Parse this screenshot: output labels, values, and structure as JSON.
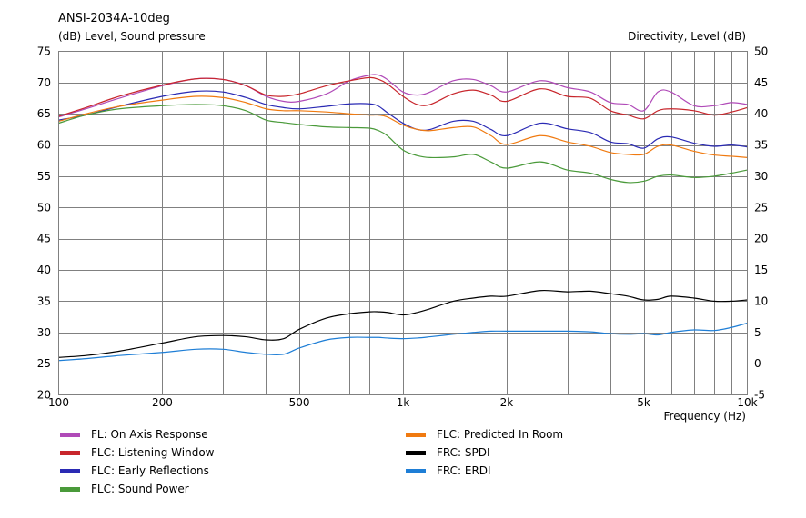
{
  "chart_data": {
    "type": "line",
    "title": "ANSI-2034A-10deg",
    "ylabel_left": "(dB)  Level, Sound pressure",
    "ylabel_right": "Directivity, Level  (dB)",
    "xlabel": "Frequency  (Hz)",
    "x_scale": "log",
    "xlim": [
      100,
      10000
    ],
    "ylim_left": [
      20,
      75
    ],
    "ylim_right": [
      -5,
      50
    ],
    "yticks_left": [
      "75",
      "70",
      "65",
      "60",
      "55",
      "50",
      "45",
      "40",
      "35",
      "30",
      "25",
      "20"
    ],
    "yticks_right": [
      "50",
      "45",
      "40",
      "35",
      "30",
      "25",
      "20",
      "15",
      "10",
      "5",
      "0",
      "-5"
    ],
    "xtick_labels": [
      {
        "x": 100,
        "label": "100"
      },
      {
        "x": 200,
        "label": "200"
      },
      {
        "x": 500,
        "label": "500"
      },
      {
        "x": 1000,
        "label": "1k"
      },
      {
        "x": 2000,
        "label": "2k"
      },
      {
        "x": 5000,
        "label": "5k"
      },
      {
        "x": 10000,
        "label": "10k"
      }
    ],
    "grid": true,
    "series": [
      {
        "name": "FL: On Axis Response",
        "axis": "left",
        "color": "#b04ab8",
        "x": [
          100,
          120,
          150,
          200,
          250,
          300,
          350,
          400,
          450,
          500,
          600,
          700,
          800,
          850,
          900,
          1000,
          1100,
          1200,
          1400,
          1600,
          1800,
          2000,
          2500,
          3000,
          3500,
          4000,
          4500,
          5000,
          5500,
          6000,
          7000,
          8000,
          9000,
          10000
        ],
        "y": [
          64.5,
          65.8,
          67.5,
          69.5,
          70.6,
          70.5,
          69.5,
          67.8,
          67,
          67,
          68.2,
          70.3,
          71.2,
          71.2,
          70.5,
          68.5,
          68,
          68.5,
          70.3,
          70.5,
          69.5,
          68.5,
          70.3,
          69.2,
          68.5,
          66.8,
          66.5,
          65.5,
          68.5,
          68.5,
          66.3,
          66.3,
          66.8,
          66.5
        ]
      },
      {
        "name": "FLC: Listening Window",
        "axis": "left",
        "color": "#c8262c",
        "x": [
          100,
          120,
          150,
          200,
          250,
          300,
          350,
          400,
          450,
          500,
          600,
          700,
          800,
          850,
          900,
          1000,
          1100,
          1200,
          1400,
          1600,
          1800,
          2000,
          2500,
          3000,
          3500,
          4000,
          4500,
          5000,
          5500,
          6000,
          7000,
          8000,
          9000,
          10000
        ],
        "y": [
          64.6,
          66,
          67.8,
          69.6,
          70.6,
          70.5,
          69.5,
          68,
          67.8,
          68.2,
          69.5,
          70.3,
          70.8,
          70.5,
          69.8,
          67.8,
          66.5,
          66.5,
          68.2,
          68.8,
          68,
          67,
          69,
          67.8,
          67.5,
          65.5,
          64.8,
          64.2,
          65.5,
          65.8,
          65.5,
          64.8,
          65.3,
          66
        ]
      },
      {
        "name": "FLC: Early Reflections",
        "axis": "left",
        "color": "#2a2ab4",
        "x": [
          100,
          120,
          150,
          200,
          250,
          300,
          350,
          400,
          450,
          500,
          600,
          700,
          800,
          850,
          900,
          1000,
          1100,
          1200,
          1400,
          1600,
          1800,
          2000,
          2500,
          3000,
          3500,
          4000,
          4500,
          5000,
          5500,
          6000,
          7000,
          8000,
          9000,
          10000
        ],
        "y": [
          64,
          64.8,
          66.2,
          67.8,
          68.6,
          68.5,
          67.6,
          66.5,
          66,
          65.8,
          66.2,
          66.6,
          66.6,
          66.2,
          65.2,
          63.5,
          62.5,
          62.5,
          63.8,
          63.8,
          62.5,
          61.5,
          63.5,
          62.6,
          62,
          60.5,
          60.2,
          59.5,
          61,
          61.3,
          60.3,
          59.8,
          60,
          59.7
        ]
      },
      {
        "name": "FLC: Sound Power",
        "axis": "left",
        "color": "#4a9a3a",
        "x": [
          100,
          120,
          150,
          200,
          250,
          300,
          350,
          400,
          450,
          500,
          600,
          700,
          800,
          850,
          900,
          1000,
          1100,
          1200,
          1400,
          1600,
          1800,
          2000,
          2500,
          3000,
          3500,
          4000,
          4500,
          5000,
          5500,
          6000,
          7000,
          8000,
          9000,
          10000
        ],
        "y": [
          63.5,
          64.8,
          65.8,
          66.3,
          66.5,
          66.3,
          65.5,
          64,
          63.6,
          63.3,
          62.9,
          62.8,
          62.7,
          62.3,
          61.5,
          59.2,
          58.3,
          58,
          58.1,
          58.5,
          57.3,
          56.3,
          57.3,
          56,
          55.5,
          54.5,
          54,
          54.2,
          55,
          55.2,
          54.8,
          55,
          55.5,
          56
        ]
      },
      {
        "name": "FLC: Predicted In Room",
        "axis": "left",
        "color": "#f07a10",
        "x": [
          100,
          120,
          150,
          200,
          250,
          300,
          350,
          400,
          450,
          500,
          600,
          700,
          800,
          850,
          900,
          1000,
          1100,
          1200,
          1400,
          1600,
          1800,
          2000,
          2500,
          3000,
          3500,
          4000,
          4500,
          5000,
          5500,
          6000,
          7000,
          8000,
          9000,
          10000
        ],
        "y": [
          63.8,
          65,
          66.2,
          67.2,
          67.8,
          67.6,
          66.8,
          65.8,
          65.5,
          65.5,
          65.3,
          65,
          64.8,
          64.8,
          64.5,
          63.2,
          62.5,
          62.3,
          62.8,
          62.9,
          61.5,
          60.1,
          61.5,
          60.5,
          59.8,
          58.8,
          58.5,
          58.5,
          59.8,
          60,
          59,
          58.4,
          58.2,
          58
        ]
      },
      {
        "name": "FRC: SPDI",
        "axis": "right",
        "color": "#000000",
        "x": [
          100,
          120,
          150,
          200,
          250,
          300,
          350,
          400,
          450,
          500,
          600,
          700,
          800,
          850,
          900,
          1000,
          1100,
          1200,
          1400,
          1600,
          1800,
          2000,
          2500,
          3000,
          3500,
          4000,
          4500,
          5000,
          5500,
          6000,
          7000,
          8000,
          9000,
          10000
        ],
        "y": [
          1,
          1.3,
          2,
          3.3,
          4.3,
          4.5,
          4.3,
          3.8,
          4,
          5.5,
          7.3,
          8,
          8.3,
          8.3,
          8.2,
          7.8,
          8.2,
          8.8,
          10,
          10.5,
          10.8,
          10.8,
          11.7,
          11.5,
          11.6,
          11.2,
          10.8,
          10.2,
          10.3,
          10.8,
          10.5,
          10,
          10,
          10.2
        ]
      },
      {
        "name": "FRC: ERDI",
        "axis": "right",
        "color": "#1e7ed6",
        "x": [
          100,
          120,
          150,
          200,
          250,
          300,
          350,
          400,
          450,
          500,
          600,
          700,
          800,
          850,
          900,
          1000,
          1100,
          1200,
          1400,
          1600,
          1800,
          2000,
          2500,
          3000,
          3500,
          4000,
          4500,
          5000,
          5500,
          6000,
          7000,
          8000,
          9000,
          10000
        ],
        "y": [
          0.5,
          0.8,
          1.3,
          1.8,
          2.3,
          2.3,
          1.8,
          1.5,
          1.5,
          2.5,
          3.8,
          4.2,
          4.2,
          4.2,
          4.1,
          4,
          4.1,
          4.3,
          4.7,
          5,
          5.2,
          5.2,
          5.2,
          5.2,
          5.1,
          4.8,
          4.7,
          4.8,
          4.6,
          5,
          5.4,
          5.3,
          5.8,
          6.5
        ]
      }
    ]
  }
}
